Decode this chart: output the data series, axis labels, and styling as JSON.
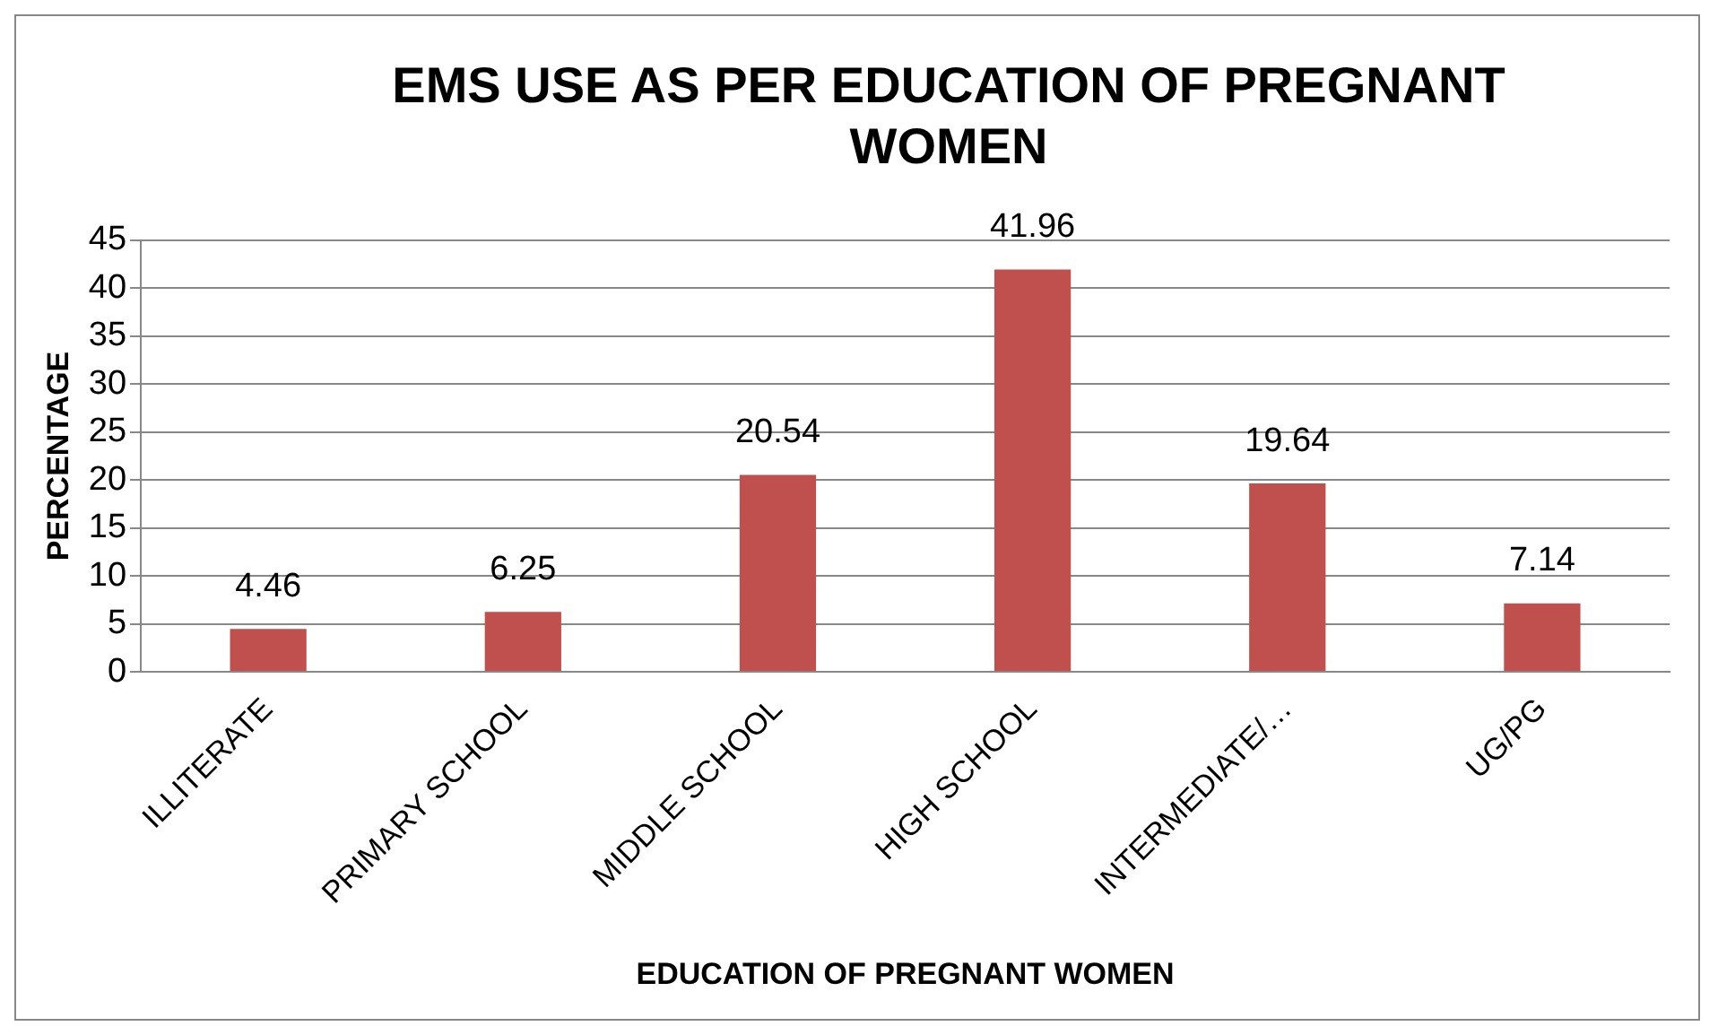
{
  "chart_data": {
    "type": "bar",
    "title": "EMS USE AS PER EDUCATION OF PREGNANT WOMEN",
    "xlabel": "EDUCATION OF PREGNANT WOMEN",
    "ylabel": "PERCENTAGE",
    "categories": [
      "ILLITERATE",
      "PRIMARY SCHOOL",
      "MIDDLE SCHOOL",
      "HIGH SCHOOL",
      "INTERMEDIATE/…",
      "UG/PG"
    ],
    "values": [
      4.46,
      6.25,
      20.54,
      41.96,
      19.64,
      7.14
    ],
    "color": "#c0504d",
    "ylim": [
      0,
      45
    ],
    "yticks": [
      0,
      5,
      10,
      15,
      20,
      25,
      30,
      35,
      40,
      45
    ],
    "grid": "y",
    "data_labels": true,
    "legend": false
  }
}
